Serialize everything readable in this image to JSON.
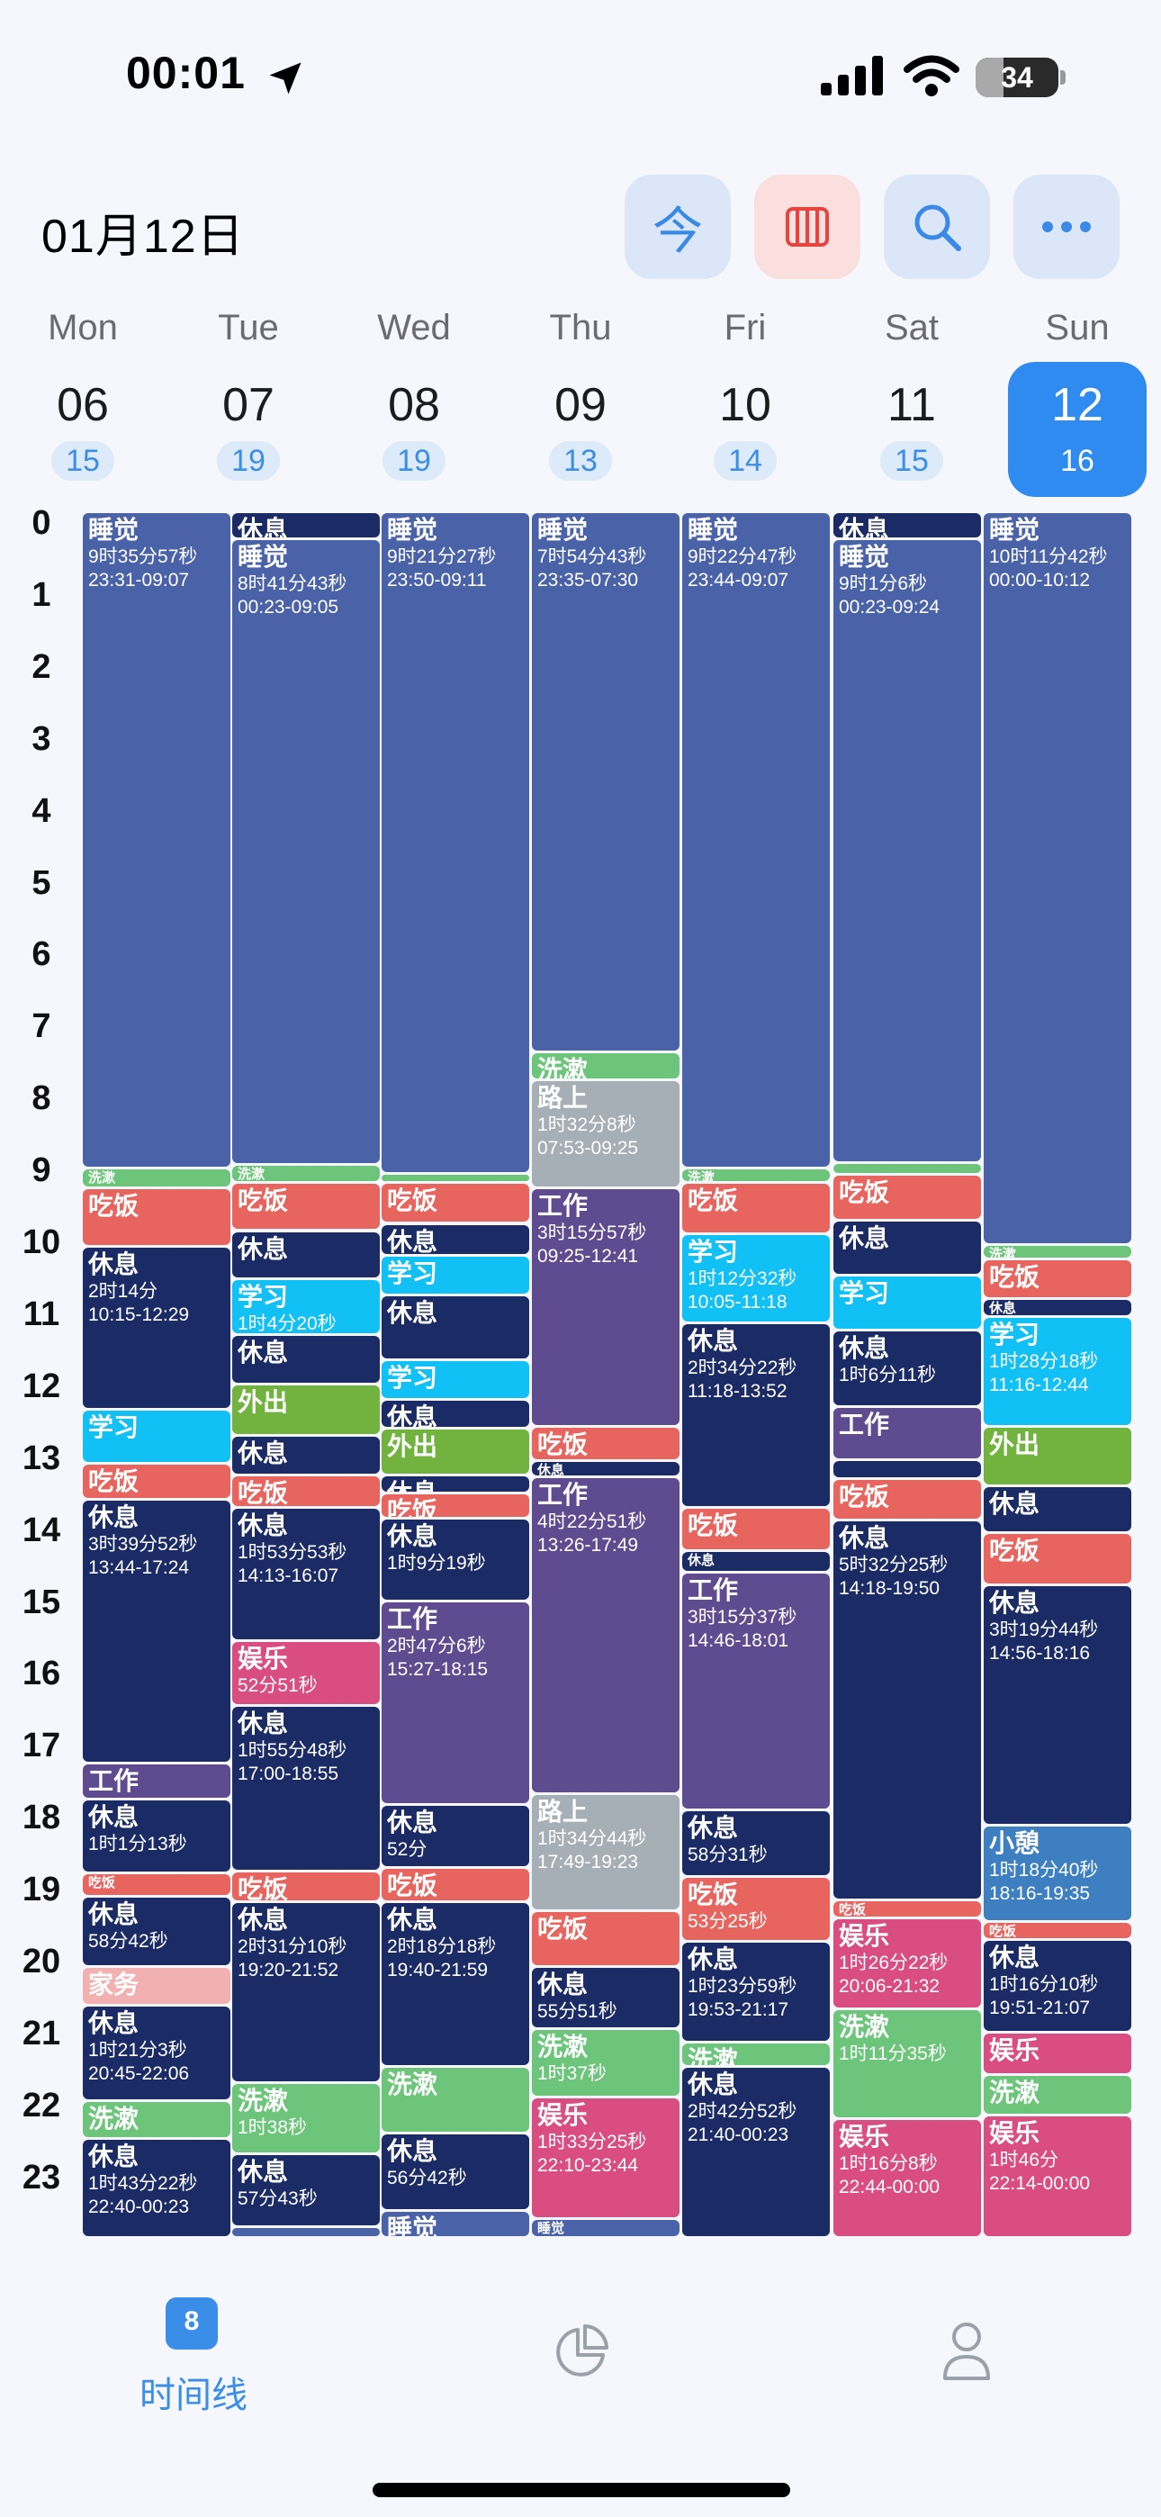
{
  "status": {
    "time": "00:01",
    "battery": "34",
    "battery_pct": 34
  },
  "header": {
    "date": "01月12日",
    "today_label": "今",
    "buttons": [
      {
        "icon": "today-icon"
      },
      {
        "icon": "week-view-icon"
      },
      {
        "icon": "search-icon"
      },
      {
        "icon": "more-icon"
      }
    ]
  },
  "days": [
    {
      "weekday": "Mon",
      "date": "06",
      "count": "15"
    },
    {
      "weekday": "Tue",
      "date": "07",
      "count": "19"
    },
    {
      "weekday": "Wed",
      "date": "08",
      "count": "19"
    },
    {
      "weekday": "Thu",
      "date": "09",
      "count": "13"
    },
    {
      "weekday": "Fri",
      "date": "10",
      "count": "14"
    },
    {
      "weekday": "Sat",
      "date": "11",
      "count": "15"
    },
    {
      "weekday": "Sun",
      "date": "12",
      "count": "16",
      "selected": true
    }
  ],
  "hours": [
    "0",
    "1",
    "2",
    "3",
    "4",
    "5",
    "6",
    "7",
    "8",
    "9",
    "10",
    "11",
    "12",
    "13",
    "14",
    "15",
    "16",
    "17",
    "18",
    "19",
    "20",
    "21",
    "22",
    "23"
  ],
  "colors": {
    "sleep": "#4a62a8",
    "rest": "#1b2b66",
    "eat": "#e8655f",
    "wash": "#6cc57a",
    "study": "#11c1f5",
    "work": "#5f4b8f",
    "out": "#72b340",
    "fun": "#d94d81",
    "road": "#a6aeb6",
    "chore": "#f2b1b1",
    "nap": "#3e7fc1"
  },
  "events": [
    [
      {
        "title": "睡觉",
        "cat": "sleep",
        "start": 0,
        "end": 9.13,
        "dur": "9时35分57秒",
        "range": "23:31-09:07"
      },
      {
        "title": "洗漱",
        "cat": "wash",
        "start": 9.13,
        "end": 9.4,
        "small": true
      },
      {
        "title": "吃饭",
        "cat": "eat",
        "start": 9.4,
        "end": 10.22
      },
      {
        "title": "休息",
        "cat": "rest",
        "start": 10.22,
        "end": 12.48,
        "dur": "2时14分",
        "range": "10:15-12:29"
      },
      {
        "title": "学习",
        "cat": "study",
        "start": 12.48,
        "end": 13.23
      },
      {
        "title": "吃饭",
        "cat": "eat",
        "start": 13.23,
        "end": 13.73
      },
      {
        "title": "休息",
        "cat": "rest",
        "start": 13.73,
        "end": 17.4,
        "dur": "3时39分52秒",
        "range": "13:44-17:24"
      },
      {
        "title": "工作",
        "cat": "work",
        "start": 17.4,
        "end": 17.9
      },
      {
        "title": "休息",
        "cat": "rest",
        "start": 17.9,
        "end": 18.93,
        "dur": "1时1分13秒"
      },
      {
        "title": "吃饭",
        "cat": "eat",
        "start": 18.93,
        "end": 19.25,
        "small": true
      },
      {
        "title": "休息",
        "cat": "rest",
        "start": 19.25,
        "end": 20.23,
        "dur": "58分42秒"
      },
      {
        "title": "家务",
        "cat": "chore",
        "start": 20.23,
        "end": 20.77
      },
      {
        "title": "休息",
        "cat": "rest",
        "start": 20.77,
        "end": 22.1,
        "dur": "1时21分3秒",
        "range": "20:45-22:06"
      },
      {
        "title": "洗漱",
        "cat": "wash",
        "start": 22.1,
        "end": 22.62
      },
      {
        "title": "休息",
        "cat": "rest",
        "start": 22.62,
        "end": 24,
        "dur": "1时43分22秒",
        "range": "22:40-00:23"
      }
    ],
    [
      {
        "title": "休息",
        "cat": "rest",
        "start": 0,
        "end": 0.38
      },
      {
        "title": "睡觉",
        "cat": "sleep",
        "start": 0.38,
        "end": 9.08,
        "dur": "8时41分43秒",
        "range": "00:23-09:05"
      },
      {
        "title": "洗漱",
        "cat": "wash",
        "start": 9.08,
        "end": 9.33,
        "small": true
      },
      {
        "title": "吃饭",
        "cat": "eat",
        "start": 9.33,
        "end": 10.0
      },
      {
        "title": "休息",
        "cat": "rest",
        "start": 10.0,
        "end": 10.67
      },
      {
        "title": "学习",
        "cat": "study",
        "start": 10.67,
        "end": 11.45,
        "dur": "1时4分20秒"
      },
      {
        "title": "休息",
        "cat": "rest",
        "start": 11.45,
        "end": 12.13
      },
      {
        "title": "外出",
        "cat": "out",
        "start": 12.13,
        "end": 12.85
      },
      {
        "title": "休息",
        "cat": "rest",
        "start": 12.85,
        "end": 13.4
      },
      {
        "title": "吃饭",
        "cat": "eat",
        "start": 13.4,
        "end": 13.85
      },
      {
        "title": "休息",
        "cat": "rest",
        "start": 13.85,
        "end": 15.7,
        "dur": "1时53分53秒",
        "range": "14:13-16:07"
      },
      {
        "title": "娱乐",
        "cat": "fun",
        "start": 15.7,
        "end": 16.6,
        "dur": "52分51秒"
      },
      {
        "title": "休息",
        "cat": "rest",
        "start": 16.6,
        "end": 18.9,
        "dur": "1时55分48秒",
        "range": "17:00-18:55"
      },
      {
        "title": "吃饭",
        "cat": "eat",
        "start": 18.9,
        "end": 19.33
      },
      {
        "title": "休息",
        "cat": "rest",
        "start": 19.33,
        "end": 21.85,
        "dur": "2时31分10秒",
        "range": "19:20-21:52"
      },
      {
        "title": "洗漱",
        "cat": "wash",
        "start": 21.85,
        "end": 22.83,
        "dur": "1时38秒"
      },
      {
        "title": "休息",
        "cat": "rest",
        "start": 22.83,
        "end": 23.85,
        "dur": "57分43秒"
      },
      {
        "title": "",
        "cat": "sleep",
        "start": 23.85,
        "end": 24
      }
    ],
    [
      {
        "title": "睡觉",
        "cat": "sleep",
        "start": 0,
        "end": 9.2,
        "dur": "9时21分27秒",
        "range": "23:50-09:11"
      },
      {
        "title": "",
        "cat": "wash",
        "start": 9.2,
        "end": 9.33
      },
      {
        "title": "吃饭",
        "cat": "eat",
        "start": 9.33,
        "end": 9.9
      },
      {
        "title": "休息",
        "cat": "rest",
        "start": 9.9,
        "end": 10.35
      },
      {
        "title": "学习",
        "cat": "study",
        "start": 10.35,
        "end": 10.9
      },
      {
        "title": "休息",
        "cat": "rest",
        "start": 10.9,
        "end": 11.8
      },
      {
        "title": "学习",
        "cat": "study",
        "start": 11.8,
        "end": 12.35
      },
      {
        "title": "休息",
        "cat": "rest",
        "start": 12.35,
        "end": 12.75
      },
      {
        "title": "外出",
        "cat": "out",
        "start": 12.75,
        "end": 13.4
      },
      {
        "title": "休息",
        "cat": "rest",
        "start": 13.4,
        "end": 13.65
      },
      {
        "title": "吃饭",
        "cat": "eat",
        "start": 13.65,
        "end": 14.0
      },
      {
        "title": "休息",
        "cat": "rest",
        "start": 14.0,
        "end": 15.15,
        "dur": "1时9分19秒"
      },
      {
        "title": "工作",
        "cat": "work",
        "start": 15.15,
        "end": 17.98,
        "dur": "2时47分6秒",
        "range": "15:27-18:15"
      },
      {
        "title": "休息",
        "cat": "rest",
        "start": 17.98,
        "end": 18.85,
        "dur": "52分"
      },
      {
        "title": "吃饭",
        "cat": "eat",
        "start": 18.85,
        "end": 19.33
      },
      {
        "title": "休息",
        "cat": "rest",
        "start": 19.33,
        "end": 21.62,
        "dur": "2时18分18秒",
        "range": "19:40-21:59"
      },
      {
        "title": "洗漱",
        "cat": "wash",
        "start": 21.62,
        "end": 22.55
      },
      {
        "title": "休息",
        "cat": "rest",
        "start": 22.55,
        "end": 23.62,
        "dur": "56分42秒"
      },
      {
        "title": "睡觉",
        "cat": "sleep",
        "start": 23.62,
        "end": 24
      }
    ],
    [
      {
        "title": "睡觉",
        "cat": "sleep",
        "start": 0,
        "end": 7.52,
        "dur": "7时54分43秒",
        "range": "23:35-07:30"
      },
      {
        "title": "洗漱",
        "cat": "wash",
        "start": 7.52,
        "end": 7.9
      },
      {
        "title": "路上",
        "cat": "road",
        "start": 7.9,
        "end": 9.4,
        "dur": "1时32分8秒",
        "range": "07:53-09:25"
      },
      {
        "title": "工作",
        "cat": "work",
        "start": 9.4,
        "end": 12.72,
        "dur": "3时15分57秒",
        "range": "09:25-12:41"
      },
      {
        "title": "吃饭",
        "cat": "eat",
        "start": 12.72,
        "end": 13.2
      },
      {
        "title": "休息",
        "cat": "rest",
        "start": 13.2,
        "end": 13.42,
        "small": true
      },
      {
        "title": "工作",
        "cat": "work",
        "start": 13.42,
        "end": 17.83,
        "dur": "4时22分51秒",
        "range": "13:26-17:49"
      },
      {
        "title": "路上",
        "cat": "road",
        "start": 17.83,
        "end": 19.45,
        "dur": "1时34分44秒",
        "range": "17:49-19:23"
      },
      {
        "title": "吃饭",
        "cat": "eat",
        "start": 19.45,
        "end": 20.23
      },
      {
        "title": "休息",
        "cat": "rest",
        "start": 20.23,
        "end": 21.1,
        "dur": "55分51秒"
      },
      {
        "title": "洗漱",
        "cat": "wash",
        "start": 21.1,
        "end": 22.05,
        "dur": "1时37秒"
      },
      {
        "title": "娱乐",
        "cat": "fun",
        "start": 22.05,
        "end": 23.73,
        "dur": "1时33分25秒",
        "range": "22:10-23:44"
      },
      {
        "title": "睡觉",
        "cat": "sleep",
        "start": 23.73,
        "end": 24,
        "small": true
      }
    ],
    [
      {
        "title": "睡觉",
        "cat": "sleep",
        "start": 0,
        "end": 9.13,
        "dur": "9时22分47秒",
        "range": "23:44-09:07"
      },
      {
        "title": "洗漱",
        "cat": "wash",
        "start": 9.13,
        "end": 9.33,
        "small": true
      },
      {
        "title": "吃饭",
        "cat": "eat",
        "start": 9.33,
        "end": 10.05
      },
      {
        "title": "学习",
        "cat": "study",
        "start": 10.05,
        "end": 11.28,
        "dur": "1时12分32秒",
        "range": "10:05-11:18"
      },
      {
        "title": "休息",
        "cat": "rest",
        "start": 11.28,
        "end": 13.85,
        "dur": "2时34分22秒",
        "range": "11:18-13:52"
      },
      {
        "title": "吃饭",
        "cat": "eat",
        "start": 13.85,
        "end": 14.45
      },
      {
        "title": "休息",
        "cat": "rest",
        "start": 14.45,
        "end": 14.75,
        "small": true
      },
      {
        "title": "工作",
        "cat": "work",
        "start": 14.75,
        "end": 18.05,
        "dur": "3时15分37秒",
        "range": "14:46-18:01"
      },
      {
        "title": "休息",
        "cat": "rest",
        "start": 18.05,
        "end": 18.98,
        "dur": "58分31秒"
      },
      {
        "title": "吃饭",
        "cat": "eat",
        "start": 18.98,
        "end": 19.88,
        "dur": "53分25秒"
      },
      {
        "title": "休息",
        "cat": "rest",
        "start": 19.88,
        "end": 21.28,
        "dur": "1时23分59秒",
        "range": "19:53-21:17"
      },
      {
        "title": "洗漱",
        "cat": "wash",
        "start": 21.28,
        "end": 21.62
      },
      {
        "title": "休息",
        "cat": "rest",
        "start": 21.62,
        "end": 24,
        "dur": "2时42分52秒",
        "range": "21:40-00:23"
      }
    ],
    [
      {
        "title": "休息",
        "cat": "rest",
        "start": 0,
        "end": 0.38
      },
      {
        "title": "睡觉",
        "cat": "sleep",
        "start": 0.38,
        "end": 9.05,
        "dur": "9时1分6秒",
        "range": "00:23-09:24"
      },
      {
        "title": "",
        "cat": "wash",
        "start": 9.05,
        "end": 9.22
      },
      {
        "title": "吃饭",
        "cat": "eat",
        "start": 9.22,
        "end": 9.85
      },
      {
        "title": "休息",
        "cat": "rest",
        "start": 9.85,
        "end": 10.62
      },
      {
        "title": "学习",
        "cat": "study",
        "start": 10.62,
        "end": 11.38
      },
      {
        "title": "休息",
        "cat": "rest",
        "start": 11.38,
        "end": 12.45,
        "dur": "1时6分11秒"
      },
      {
        "title": "工作",
        "cat": "work",
        "start": 12.45,
        "end": 13.18
      },
      {
        "title": "",
        "cat": "rest",
        "start": 13.18,
        "end": 13.45
      },
      {
        "title": "吃饭",
        "cat": "eat",
        "start": 13.45,
        "end": 14.03
      },
      {
        "title": "休息",
        "cat": "rest",
        "start": 14.03,
        "end": 19.3,
        "dur": "5时32分25秒",
        "range": "14:18-19:50"
      },
      {
        "title": "吃饭",
        "cat": "eat",
        "start": 19.3,
        "end": 19.55,
        "small": true
      },
      {
        "title": "娱乐",
        "cat": "fun",
        "start": 19.55,
        "end": 20.82,
        "dur": "1时26分22秒",
        "range": "20:06-21:32"
      },
      {
        "title": "洗漱",
        "cat": "wash",
        "start": 20.82,
        "end": 22.35,
        "dur": "1时11分35秒"
      },
      {
        "title": "娱乐",
        "cat": "fun",
        "start": 22.35,
        "end": 24,
        "dur": "1时16分8秒",
        "range": "22:44-00:00"
      }
    ],
    [
      {
        "title": "睡觉",
        "cat": "sleep",
        "start": 0,
        "end": 10.2,
        "dur": "10时11分42秒",
        "range": "00:00-10:12"
      },
      {
        "title": "洗漱",
        "cat": "wash",
        "start": 10.2,
        "end": 10.4,
        "small": true
      },
      {
        "title": "吃饭",
        "cat": "eat",
        "start": 10.4,
        "end": 10.95
      },
      {
        "title": "休息",
        "cat": "rest",
        "start": 10.95,
        "end": 11.2,
        "small": true
      },
      {
        "title": "学习",
        "cat": "study",
        "start": 11.2,
        "end": 12.72,
        "dur": "1时28分18秒",
        "range": "11:16-12:44"
      },
      {
        "title": "外出",
        "cat": "out",
        "start": 12.72,
        "end": 13.55
      },
      {
        "title": "休息",
        "cat": "rest",
        "start": 13.55,
        "end": 14.2
      },
      {
        "title": "吃饭",
        "cat": "eat",
        "start": 14.2,
        "end": 14.93
      },
      {
        "title": "休息",
        "cat": "rest",
        "start": 14.93,
        "end": 18.27,
        "dur": "3时19分44秒",
        "range": "14:56-18:16"
      },
      {
        "title": "小憩",
        "cat": "nap",
        "start": 18.27,
        "end": 19.6,
        "dur": "1时18分40秒",
        "range": "18:16-19:35"
      },
      {
        "title": "吃饭",
        "cat": "eat",
        "start": 19.6,
        "end": 19.85,
        "small": true
      },
      {
        "title": "休息",
        "cat": "rest",
        "start": 19.85,
        "end": 21.15,
        "dur": "1时16分10秒",
        "range": "19:51-21:07"
      },
      {
        "title": "娱乐",
        "cat": "fun",
        "start": 21.15,
        "end": 21.73
      },
      {
        "title": "洗漱",
        "cat": "wash",
        "start": 21.73,
        "end": 22.3
      },
      {
        "title": "娱乐",
        "cat": "fun",
        "start": 22.3,
        "end": 24,
        "dur": "1时46分",
        "range": "22:14-00:00"
      }
    ]
  ],
  "tabbar": {
    "timeline_label": "时间线",
    "calendar_badge": "8"
  }
}
